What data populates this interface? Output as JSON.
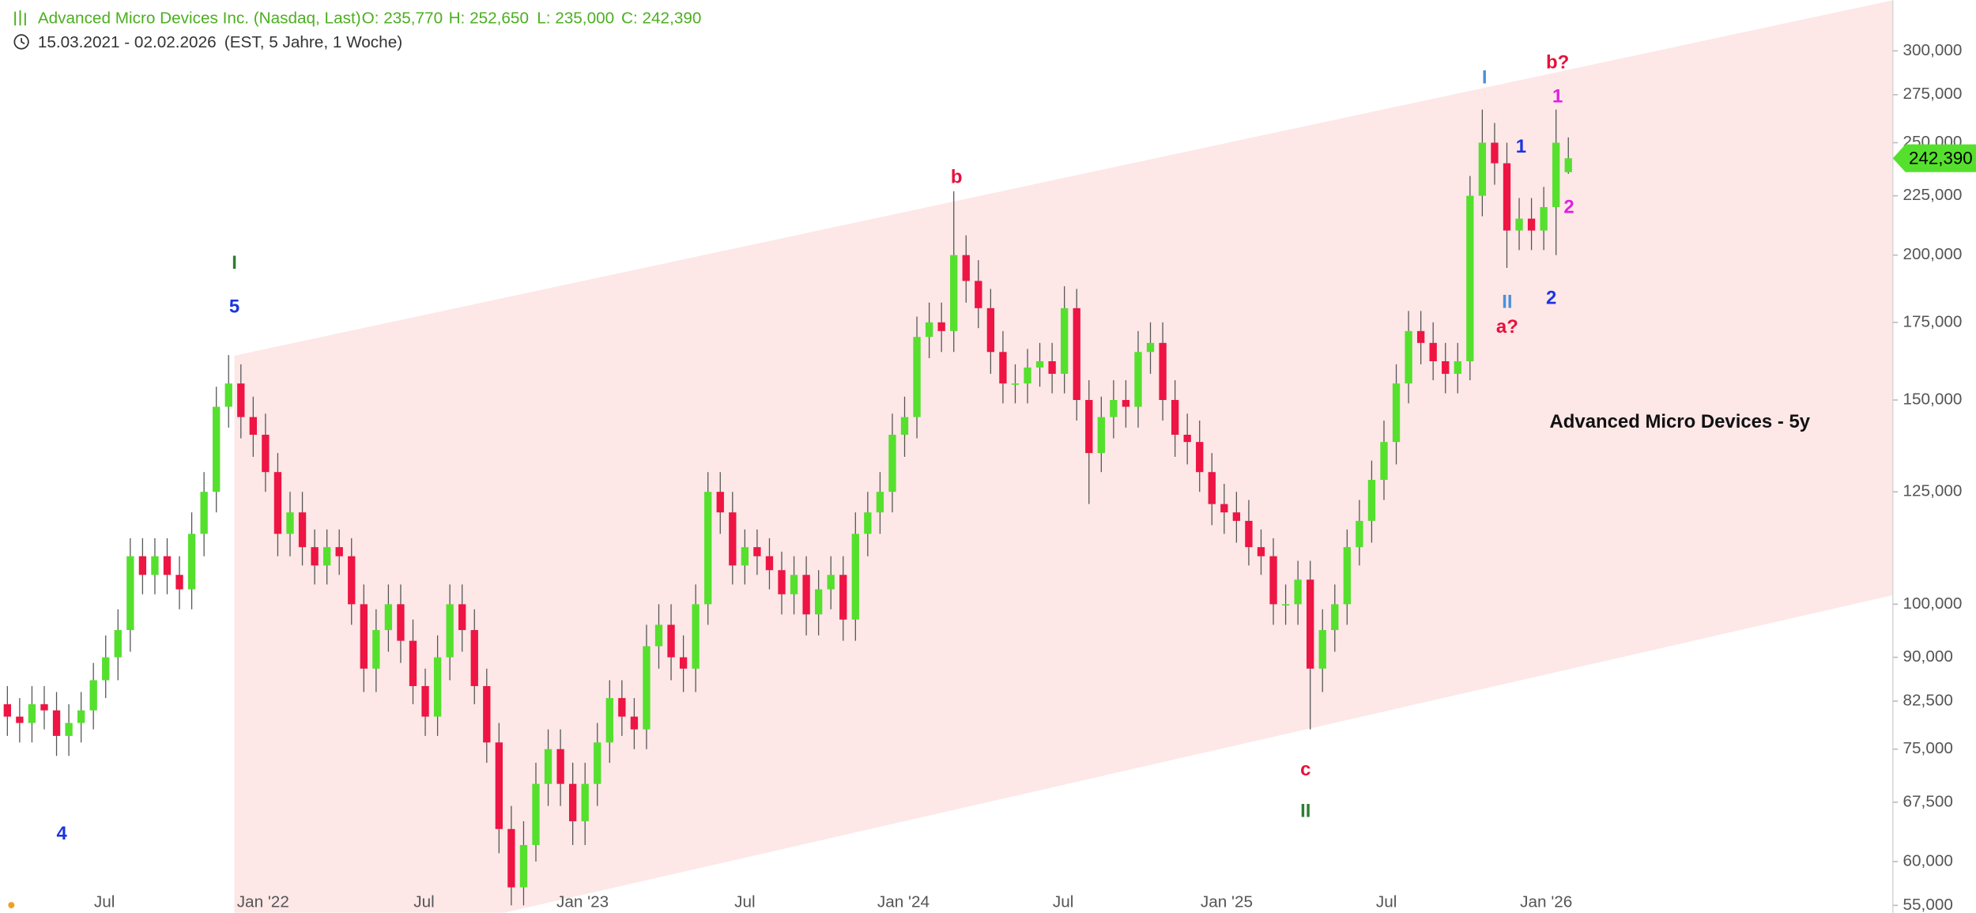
{
  "header": {
    "title": "Advanced Micro Devices Inc. (Nasdaq, Last)",
    "open": "O: 235,770",
    "high": "H: 252,650",
    "low": "L: 235,000",
    "close": "C: 242,390",
    "range": "15.03.2021 - 02.02.2026",
    "period": "(EST, 5 Jahre, 1 Woche)"
  },
  "chart_data": {
    "type": "candlestick",
    "up_color": "#55e02e",
    "down_color": "#ee1443",
    "wick_color": "#555555",
    "log_scale": true,
    "open": [
      82,
      80,
      79,
      82,
      81,
      77,
      79,
      81,
      86,
      90,
      95,
      110,
      106,
      110,
      106,
      103,
      115,
      125,
      148,
      155,
      145,
      140,
      130,
      115,
      120,
      112,
      108,
      112,
      110,
      100,
      88,
      95,
      100,
      93,
      85,
      80,
      90,
      100,
      95,
      85,
      76,
      64,
      57,
      62,
      70,
      75,
      70,
      65,
      70,
      76,
      83,
      80,
      78,
      92,
      96,
      90,
      88,
      100,
      125,
      120,
      108,
      112,
      110,
      107,
      102,
      106,
      98,
      103,
      106,
      97,
      115,
      120,
      125,
      140,
      145,
      170,
      175,
      172,
      200,
      190,
      180,
      165,
      155,
      155,
      160,
      162,
      158,
      180,
      150,
      135,
      145,
      150,
      148,
      165,
      168,
      150,
      140,
      138,
      130,
      122,
      120,
      118,
      112,
      110,
      100,
      100,
      105,
      88,
      95,
      100,
      112,
      118,
      128,
      138,
      155,
      172,
      168,
      162,
      158,
      162,
      225,
      250,
      240,
      210,
      215,
      210,
      220,
      235.77
    ],
    "high": [
      85,
      83,
      85,
      85,
      84,
      82,
      84,
      89,
      94,
      99,
      114,
      114,
      114,
      114,
      110,
      120,
      130,
      154,
      164,
      161,
      151,
      146,
      135,
      125,
      125,
      116,
      116,
      116,
      114,
      104,
      99,
      104,
      104,
      97,
      88,
      94,
      104,
      104,
      99,
      88,
      79,
      67,
      65,
      73,
      78,
      78,
      73,
      73,
      79,
      86,
      86,
      83,
      96,
      100,
      100,
      94,
      104,
      130,
      130,
      125,
      116,
      116,
      114,
      111,
      110,
      110,
      107,
      110,
      110,
      120,
      125,
      130,
      146,
      151,
      177,
      182,
      182,
      227,
      208,
      198,
      187,
      172,
      161,
      166,
      168,
      168,
      188,
      187,
      156,
      151,
      156,
      156,
      172,
      175,
      175,
      156,
      146,
      144,
      135,
      127,
      125,
      123,
      116,
      114,
      104,
      109,
      109,
      99,
      104,
      116,
      123,
      133,
      144,
      161,
      179,
      179,
      175,
      168,
      168,
      234,
      267,
      260,
      250,
      224,
      224,
      229,
      267,
      252.65
    ],
    "low": [
      77,
      76,
      76,
      78,
      74,
      74,
      76,
      78,
      83,
      86,
      91,
      102,
      102,
      102,
      99,
      99,
      110,
      120,
      142,
      139,
      134,
      125,
      110,
      110,
      108,
      104,
      104,
      106,
      96,
      84,
      84,
      91,
      89,
      82,
      77,
      77,
      86,
      91,
      82,
      73,
      61,
      55,
      55,
      60,
      67,
      67,
      62,
      62,
      67,
      73,
      77,
      75,
      75,
      88,
      86,
      84,
      84,
      96,
      115,
      104,
      104,
      106,
      103,
      98,
      98,
      94,
      94,
      99,
      93,
      93,
      110,
      115,
      120,
      134,
      139,
      163,
      165,
      165,
      182,
      173,
      158,
      149,
      149,
      149,
      154,
      152,
      152,
      144,
      122,
      130,
      139,
      142,
      142,
      158,
      144,
      134,
      132,
      125,
      117,
      115,
      113,
      108,
      106,
      96,
      96,
      96,
      78,
      84,
      91,
      96,
      108,
      113,
      123,
      132,
      149,
      161,
      156,
      152,
      152,
      156,
      216,
      230,
      195,
      202,
      202,
      202,
      200,
      235
    ],
    "close": [
      80,
      79,
      82,
      81,
      77,
      79,
      81,
      86,
      90,
      95,
      110,
      106,
      110,
      106,
      103,
      115,
      125,
      148,
      155,
      145,
      140,
      130,
      115,
      120,
      112,
      108,
      112,
      110,
      100,
      88,
      95,
      100,
      93,
      85,
      80,
      90,
      100,
      95,
      85,
      76,
      64,
      57,
      62,
      70,
      75,
      70,
      65,
      70,
      76,
      83,
      80,
      78,
      92,
      96,
      90,
      88,
      100,
      125,
      120,
      108,
      112,
      110,
      107,
      102,
      106,
      98,
      103,
      106,
      97,
      115,
      120,
      125,
      140,
      145,
      170,
      175,
      172,
      200,
      190,
      180,
      165,
      155,
      155,
      160,
      162,
      158,
      180,
      150,
      135,
      145,
      150,
      148,
      165,
      168,
      150,
      140,
      138,
      130,
      122,
      120,
      118,
      112,
      110,
      100,
      100,
      105,
      88,
      95,
      100,
      112,
      118,
      128,
      138,
      155,
      172,
      168,
      162,
      158,
      162,
      225,
      250,
      240,
      210,
      215,
      210,
      220,
      250,
      242.39
    ],
    "xlim": [
      -0.6,
      153.4
    ],
    "xticks": [
      {
        "value": 7.9,
        "label": "Jul"
      },
      {
        "value": 20.8,
        "label": "Jan '22"
      },
      {
        "value": 33.9,
        "label": "Jul"
      },
      {
        "value": 46.8,
        "label": "Jan '23"
      },
      {
        "value": 60.0,
        "label": "Jul"
      },
      {
        "value": 72.9,
        "label": "Jan '24"
      },
      {
        "value": 85.9,
        "label": "Jul"
      },
      {
        "value": 99.2,
        "label": "Jan '25"
      },
      {
        "value": 112.2,
        "label": "Jul"
      },
      {
        "value": 125.2,
        "label": "Jan '26"
      }
    ],
    "ylim": [
      54.2,
      331.7
    ],
    "yticks": [
      {
        "value": 300,
        "label": "300,000"
      },
      {
        "value": 275,
        "label": "275,000"
      },
      {
        "value": 250,
        "label": "250,000"
      },
      {
        "value": 225,
        "label": "225,000"
      },
      {
        "value": 200,
        "label": "200,000"
      },
      {
        "value": 175,
        "label": "175,000"
      },
      {
        "value": 150,
        "label": "150,000"
      },
      {
        "value": 125,
        "label": "125,000"
      },
      {
        "value": 100,
        "label": "100,000"
      },
      {
        "value": 90,
        "label": "90,000"
      },
      {
        "value": 82.5,
        "label": "82,500"
      },
      {
        "value": 75,
        "label": "75,000"
      },
      {
        "value": 67.5,
        "label": "67,500"
      },
      {
        "value": 60,
        "label": "60,000"
      },
      {
        "value": 55,
        "label": "55,000"
      }
    ],
    "last_price_label": "242,390",
    "annotations": [
      {
        "text": "I",
        "color": "#2e7d32"
      },
      {
        "text": "5",
        "color": "#1a35e0"
      },
      {
        "text": "4",
        "color": "#1a35e0"
      },
      {
        "text": "b",
        "color": "#e8103a"
      },
      {
        "text": "c",
        "color": "#e8103a"
      },
      {
        "text": "II",
        "color": "#2e7d32"
      },
      {
        "text": "I",
        "color": "#4a90d9"
      },
      {
        "text": "1",
        "color": "#1a35e0"
      },
      {
        "text": "II",
        "color": "#4a90d9"
      },
      {
        "text": "a?",
        "color": "#e8103a"
      },
      {
        "text": "2",
        "color": "#1a35e0"
      },
      {
        "text": "b?",
        "color": "#e8103a"
      },
      {
        "text": "1",
        "color": "#e020e0"
      },
      {
        "text": "2",
        "color": "#e020e0"
      },
      {
        "text": "Advanced Micro Devices - 5y",
        "color": "#111111"
      }
    ]
  }
}
